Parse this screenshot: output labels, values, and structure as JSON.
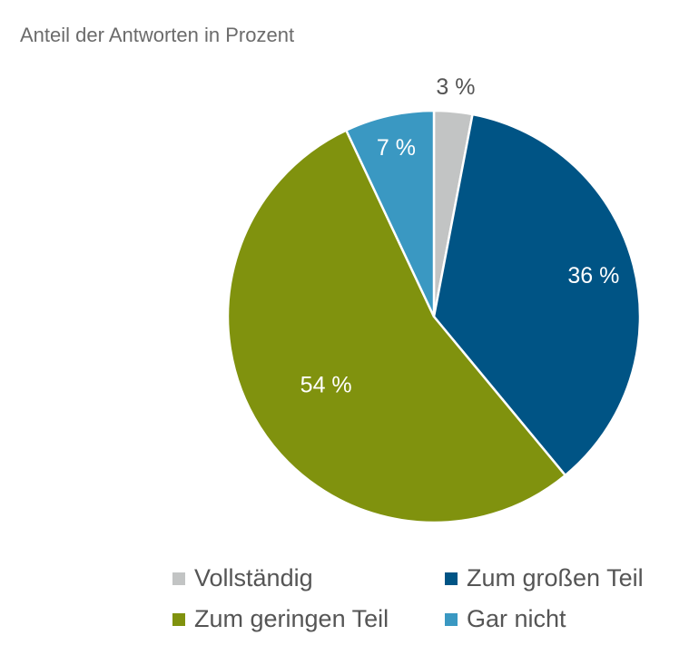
{
  "subtitle": "Anteil der Antworten in Prozent",
  "chart_data": {
    "type": "pie",
    "title": "",
    "subtitle": "Anteil der Antworten in Prozent",
    "legend_position": "bottom",
    "slices": [
      {
        "label": "Vollständig",
        "value": 3,
        "display": "3 %",
        "color": "#c2c4c4",
        "label_color": "#555555"
      },
      {
        "label": "Zum großen Teil",
        "value": 36,
        "display": "36 %",
        "color": "#005485",
        "label_color": "#ffffff"
      },
      {
        "label": "Zum geringen Teil",
        "value": 54,
        "display": "54 %",
        "color": "#80920e",
        "label_color": "#ffffff"
      },
      {
        "label": "Gar nicht",
        "value": 7,
        "display": "7 %",
        "color": "#3a98c2",
        "label_color": "#ffffff"
      }
    ]
  },
  "legend": {
    "items": [
      {
        "label": "Vollständig",
        "color": "#c2c4c4"
      },
      {
        "label": "Zum großen Teil",
        "color": "#005485"
      },
      {
        "label": "Zum geringen Teil",
        "color": "#80920e"
      },
      {
        "label": "Gar nicht",
        "color": "#3a98c2"
      }
    ]
  }
}
